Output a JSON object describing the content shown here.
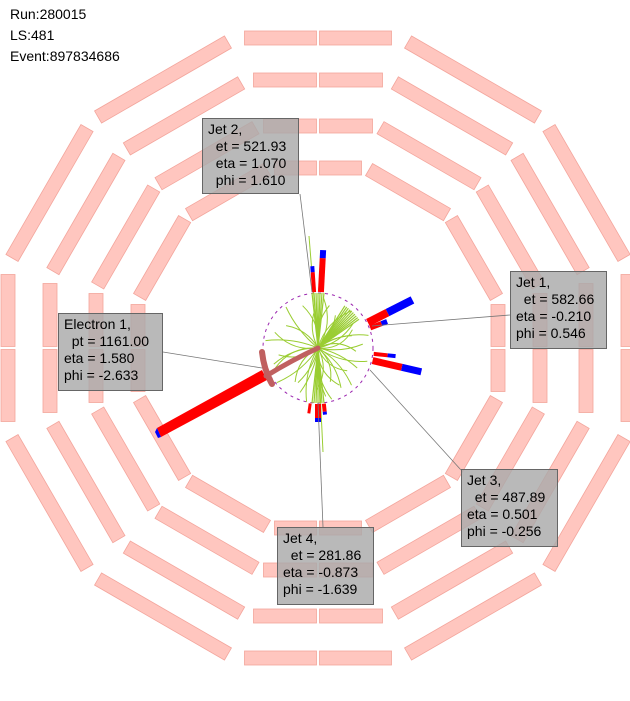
{
  "event_info": {
    "run": "Run:280015",
    "lumi_section": "LS:481",
    "event": "Event:897834686"
  },
  "colors": {
    "detector_module": "#ffc6bf",
    "detector_module_edge": "#f3a59c",
    "jet_tracks": "#9acd32",
    "ecal_deposit": "#ff0000",
    "hcal_deposit": "#0000ff",
    "electron": "#c06060",
    "label_bg": "#aaaaaa"
  },
  "objects": [
    {
      "id": "jet-2",
      "lines": [
        "Jet 2,",
        "  et = 521.93",
        "  eta = 1.070",
        "  phi = 1.610"
      ]
    },
    {
      "id": "jet-1",
      "lines": [
        "Jet 1,",
        "  et = 582.66",
        "eta = -0.210",
        "phi = 0.546"
      ]
    },
    {
      "id": "electron-1",
      "lines": [
        "Electron 1,",
        "  pt = 1161.00",
        "eta = 1.580",
        "phi = -2.633"
      ]
    },
    {
      "id": "jet-3",
      "lines": [
        "Jet 3,",
        "  et = 487.89",
        "eta = 0.501",
        "phi = -0.256"
      ]
    },
    {
      "id": "jet-4",
      "lines": [
        "Jet 4,",
        "  et = 281.86",
        "eta = -0.873",
        "phi = -1.639"
      ]
    }
  ]
}
